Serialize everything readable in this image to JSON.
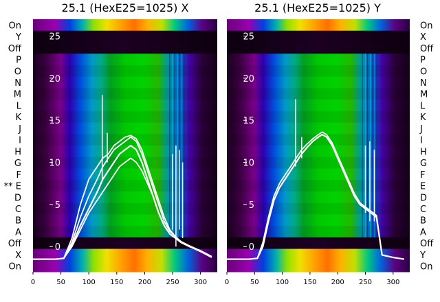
{
  "chart_data": [
    {
      "type": "heatmap",
      "title": "25.1 (HexE25=1025) X",
      "x_ticks": [
        0,
        50,
        100,
        150,
        200,
        250,
        300
      ],
      "xlim": [
        0,
        330
      ],
      "y_ticks": [
        0,
        5,
        10,
        15,
        20,
        25
      ],
      "ylim": [
        -3,
        27
      ],
      "row_labels_top_to_bottom": [
        "On",
        "Y",
        "Off",
        "P",
        "O",
        "N",
        "M",
        "L",
        "K",
        "J",
        "I",
        "H",
        "G",
        "F",
        "** E",
        "D",
        "C",
        "B",
        "A",
        "Off",
        "X",
        "On"
      ],
      "colormap": "nipy_spectral-like (purple-blue-green-yellow-red)",
      "curve_color": "#ffffff",
      "series": [
        {
          "values": [
            [
              0,
              -1.5
            ],
            [
              40,
              -1.5
            ],
            [
              55,
              -1.4
            ],
            [
              70,
              0.2
            ],
            [
              85,
              2.5
            ],
            [
              100,
              4.5
            ],
            [
              115,
              6.5
            ],
            [
              125,
              8
            ],
            [
              135,
              9
            ],
            [
              145,
              10
            ],
            [
              155,
              11
            ],
            [
              165,
              11.5
            ],
            [
              175,
              12
            ],
            [
              185,
              11.5
            ],
            [
              195,
              10
            ],
            [
              205,
              8
            ],
            [
              215,
              6
            ],
            [
              225,
              4
            ],
            [
              235,
              2.5
            ],
            [
              245,
              1.5
            ],
            [
              255,
              1
            ],
            [
              265,
              0.5
            ],
            [
              280,
              0
            ],
            [
              300,
              -0.5
            ],
            [
              320,
              -1.2
            ]
          ]
        },
        {
          "values": [
            [
              0,
              -1.5
            ],
            [
              40,
              -1.5
            ],
            [
              55,
              -1.4
            ],
            [
              70,
              0.5
            ],
            [
              85,
              3.5
            ],
            [
              100,
              6
            ],
            [
              115,
              8
            ],
            [
              125,
              9.5
            ],
            [
              135,
              10.5
            ],
            [
              145,
              11.5
            ],
            [
              155,
              12
            ],
            [
              165,
              12.5
            ],
            [
              175,
              13
            ],
            [
              185,
              12.5
            ],
            [
              195,
              11
            ],
            [
              205,
              9
            ],
            [
              215,
              7
            ],
            [
              225,
              5
            ],
            [
              235,
              3
            ],
            [
              245,
              1.8
            ],
            [
              255,
              1.2
            ],
            [
              265,
              0.6
            ],
            [
              280,
              0.1
            ],
            [
              300,
              -0.5
            ],
            [
              320,
              -1.2
            ]
          ]
        },
        {
          "values": [
            [
              0,
              -1.5
            ],
            [
              40,
              -1.5
            ],
            [
              55,
              -1.4
            ],
            [
              70,
              1
            ],
            [
              85,
              5
            ],
            [
              100,
              8
            ],
            [
              115,
              9.5
            ],
            [
              125,
              10.5
            ],
            [
              135,
              11
            ],
            [
              145,
              12
            ],
            [
              155,
              12.5
            ],
            [
              165,
              13
            ],
            [
              175,
              13.2
            ],
            [
              185,
              12.8
            ],
            [
              195,
              11.5
            ],
            [
              205,
              9.5
            ],
            [
              215,
              7.5
            ],
            [
              225,
              5.5
            ],
            [
              235,
              3.5
            ],
            [
              245,
              2
            ],
            [
              255,
              1.2
            ],
            [
              265,
              0.5
            ],
            [
              280,
              0
            ],
            [
              300,
              -0.6
            ],
            [
              320,
              -1.3
            ]
          ]
        },
        {
          "values": [
            [
              0,
              -1.5
            ],
            [
              40,
              -1.5
            ],
            [
              55,
              -1.4
            ],
            [
              70,
              0
            ],
            [
              85,
              2
            ],
            [
              100,
              4
            ],
            [
              115,
              5.5
            ],
            [
              125,
              6.5
            ],
            [
              135,
              7.5
            ],
            [
              145,
              8.5
            ],
            [
              155,
              9.5
            ],
            [
              165,
              10
            ],
            [
              175,
              10.5
            ],
            [
              185,
              10
            ],
            [
              195,
              9
            ],
            [
              205,
              7.5
            ],
            [
              215,
              6
            ],
            [
              225,
              4
            ],
            [
              235,
              2.5
            ],
            [
              245,
              1.5
            ],
            [
              255,
              1
            ],
            [
              265,
              0.5
            ],
            [
              280,
              0
            ],
            [
              300,
              -0.5
            ],
            [
              320,
              -1.2
            ]
          ]
        }
      ]
    },
    {
      "type": "heatmap",
      "title": "25.1 (HexE25=1025) Y",
      "x_ticks": [
        0,
        50,
        100,
        150,
        200,
        250,
        300
      ],
      "xlim": [
        0,
        330
      ],
      "y_ticks": [
        0,
        5,
        10,
        15,
        20,
        25
      ],
      "ylim": [
        -3,
        27
      ],
      "row_labels_top_to_bottom": [
        "On",
        "X",
        "Off",
        "P",
        "O",
        "N",
        "M",
        "L",
        "K",
        "J",
        "I",
        "H",
        "G",
        "F",
        "E",
        "D",
        "C",
        "B",
        "A",
        "Off",
        "Y",
        "On"
      ],
      "colormap": "nipy_spectral-like (purple-blue-green-yellow-red)",
      "curve_color": "#ffffff",
      "series": [
        {
          "values": [
            [
              0,
              -1.5
            ],
            [
              40,
              -1.5
            ],
            [
              55,
              -1.4
            ],
            [
              65,
              0
            ],
            [
              75,
              3
            ],
            [
              85,
              5.5
            ],
            [
              95,
              7
            ],
            [
              105,
              8
            ],
            [
              115,
              9
            ],
            [
              125,
              10
            ],
            [
              135,
              11
            ],
            [
              145,
              11.8
            ],
            [
              155,
              12.5
            ],
            [
              165,
              13
            ],
            [
              172,
              13.3
            ],
            [
              180,
              13
            ],
            [
              190,
              12
            ],
            [
              200,
              10.5
            ],
            [
              210,
              9
            ],
            [
              220,
              7.5
            ],
            [
              230,
              6
            ],
            [
              240,
              5
            ],
            [
              250,
              4.5
            ],
            [
              260,
              4
            ],
            [
              270,
              3.5
            ],
            [
              280,
              -1
            ],
            [
              300,
              -1.3
            ],
            [
              320,
              -1.5
            ]
          ]
        },
        {
          "values": [
            [
              0,
              -1.5
            ],
            [
              40,
              -1.5
            ],
            [
              55,
              -1.4
            ],
            [
              65,
              0.5
            ],
            [
              75,
              3.5
            ],
            [
              85,
              6
            ],
            [
              95,
              7.5
            ],
            [
              105,
              8.5
            ],
            [
              115,
              9.5
            ],
            [
              125,
              10.5
            ],
            [
              135,
              11.5
            ],
            [
              145,
              12.2
            ],
            [
              155,
              12.8
            ],
            [
              165,
              13.3
            ],
            [
              172,
              13.6
            ],
            [
              180,
              13.3
            ],
            [
              190,
              12.3
            ],
            [
              200,
              10.8
            ],
            [
              210,
              9.3
            ],
            [
              220,
              7.8
            ],
            [
              230,
              6.3
            ],
            [
              240,
              5.2
            ],
            [
              250,
              4.7
            ],
            [
              260,
              4.2
            ],
            [
              270,
              3.7
            ],
            [
              280,
              -1
            ],
            [
              300,
              -1.3
            ],
            [
              320,
              -1.5
            ]
          ]
        }
      ]
    }
  ]
}
